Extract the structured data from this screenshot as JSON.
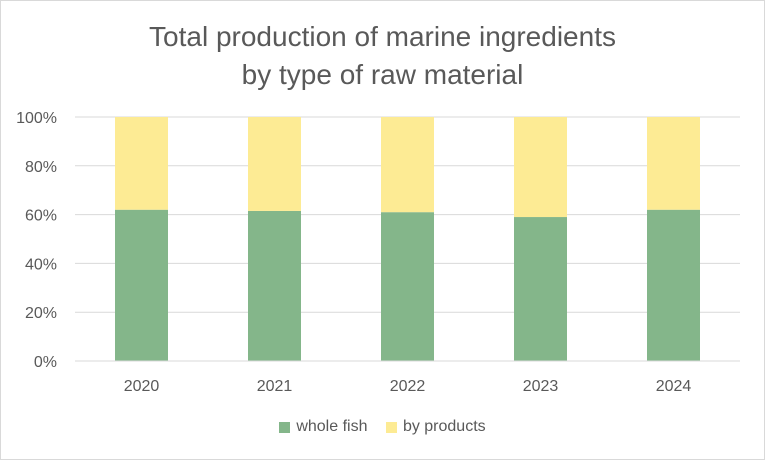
{
  "chart_data": {
    "type": "bar",
    "stacked": true,
    "title": "Total production of marine ingredients by type of raw material",
    "title_lines": [
      "Total production of marine ingredients",
      "by type of raw material"
    ],
    "categories": [
      "2020",
      "2021",
      "2022",
      "2023",
      "2024"
    ],
    "series": [
      {
        "name": "whole fish",
        "values": [
          62,
          61.5,
          61,
          59,
          62
        ],
        "color": "#84b68a"
      },
      {
        "name": "by products",
        "values": [
          38,
          38.5,
          39,
          41,
          38
        ],
        "color": "#fdeb94"
      }
    ],
    "ylim": [
      0,
      100
    ],
    "yticks": [
      0,
      20,
      40,
      60,
      80,
      100
    ],
    "ytick_labels": [
      "0%",
      "20%",
      "40%",
      "60%",
      "80%",
      "100%"
    ],
    "xlabel": "",
    "ylabel": "",
    "grid": true,
    "legend": "bottom"
  }
}
